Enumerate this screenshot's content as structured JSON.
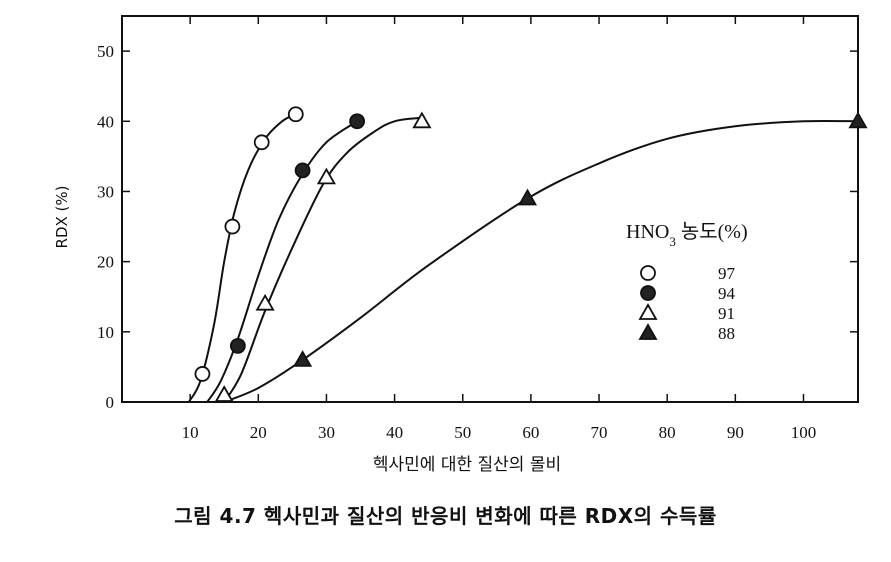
{
  "chart_data": {
    "type": "scatter",
    "xlabel": "헥사민에 대한 질산의 몰비",
    "ylabel": "RDX (%)",
    "xlim": [
      0,
      108
    ],
    "ylim": [
      0,
      55
    ],
    "xticks": [
      10,
      20,
      30,
      40,
      50,
      60,
      70,
      80,
      90,
      100
    ],
    "yticks": [
      0,
      10,
      20,
      30,
      40,
      50
    ],
    "grid": false,
    "legend": {
      "title_main": "HNO",
      "title_sub": "3",
      "title_rest": " 농도(%)",
      "placement": "right"
    },
    "series": [
      {
        "name": "97",
        "marker": "circle-open",
        "x": [
          11.8,
          16.2,
          20.5,
          25.5
        ],
        "y": [
          4,
          25,
          37,
          41
        ],
        "curve": [
          [
            9.8,
            0
          ],
          [
            11.5,
            3
          ],
          [
            13.5,
            11
          ],
          [
            15,
            20
          ],
          [
            16.5,
            27
          ],
          [
            18.5,
            33
          ],
          [
            21,
            37.5
          ],
          [
            23.5,
            40
          ],
          [
            25.5,
            41
          ]
        ]
      },
      {
        "name": "94",
        "marker": "circle-filled",
        "x": [
          17,
          26.5,
          34.5
        ],
        "y": [
          8,
          33,
          40
        ],
        "curve": [
          [
            12.5,
            0
          ],
          [
            14.5,
            3
          ],
          [
            17,
            9
          ],
          [
            20,
            18
          ],
          [
            23,
            26
          ],
          [
            26.5,
            32.5
          ],
          [
            30,
            37
          ],
          [
            34.5,
            40
          ]
        ]
      },
      {
        "name": "91",
        "marker": "triangle-open",
        "x": [
          15,
          21,
          30,
          44
        ],
        "y": [
          1,
          14,
          32,
          40
        ],
        "curve": [
          [
            15,
            0
          ],
          [
            17.5,
            4
          ],
          [
            21,
            13
          ],
          [
            25,
            22
          ],
          [
            29.5,
            31
          ],
          [
            33,
            35.5
          ],
          [
            37,
            38.5
          ],
          [
            40,
            40
          ],
          [
            44,
            40.5
          ]
        ]
      },
      {
        "name": "88",
        "marker": "triangle-filled",
        "x": [
          26.5,
          59.5,
          108
        ],
        "y": [
          6,
          29,
          40
        ],
        "curve": [
          [
            15,
            0
          ],
          [
            20,
            2
          ],
          [
            26.5,
            6
          ],
          [
            35,
            12
          ],
          [
            45,
            19.5
          ],
          [
            59.5,
            29
          ],
          [
            70,
            34
          ],
          [
            80,
            37.5
          ],
          [
            90,
            39.3
          ],
          [
            100,
            40
          ],
          [
            108,
            40
          ]
        ]
      }
    ]
  },
  "caption": "그림 4.7  헥사민과 질산의 반응비 변화에 따른 RDX의 수득률"
}
